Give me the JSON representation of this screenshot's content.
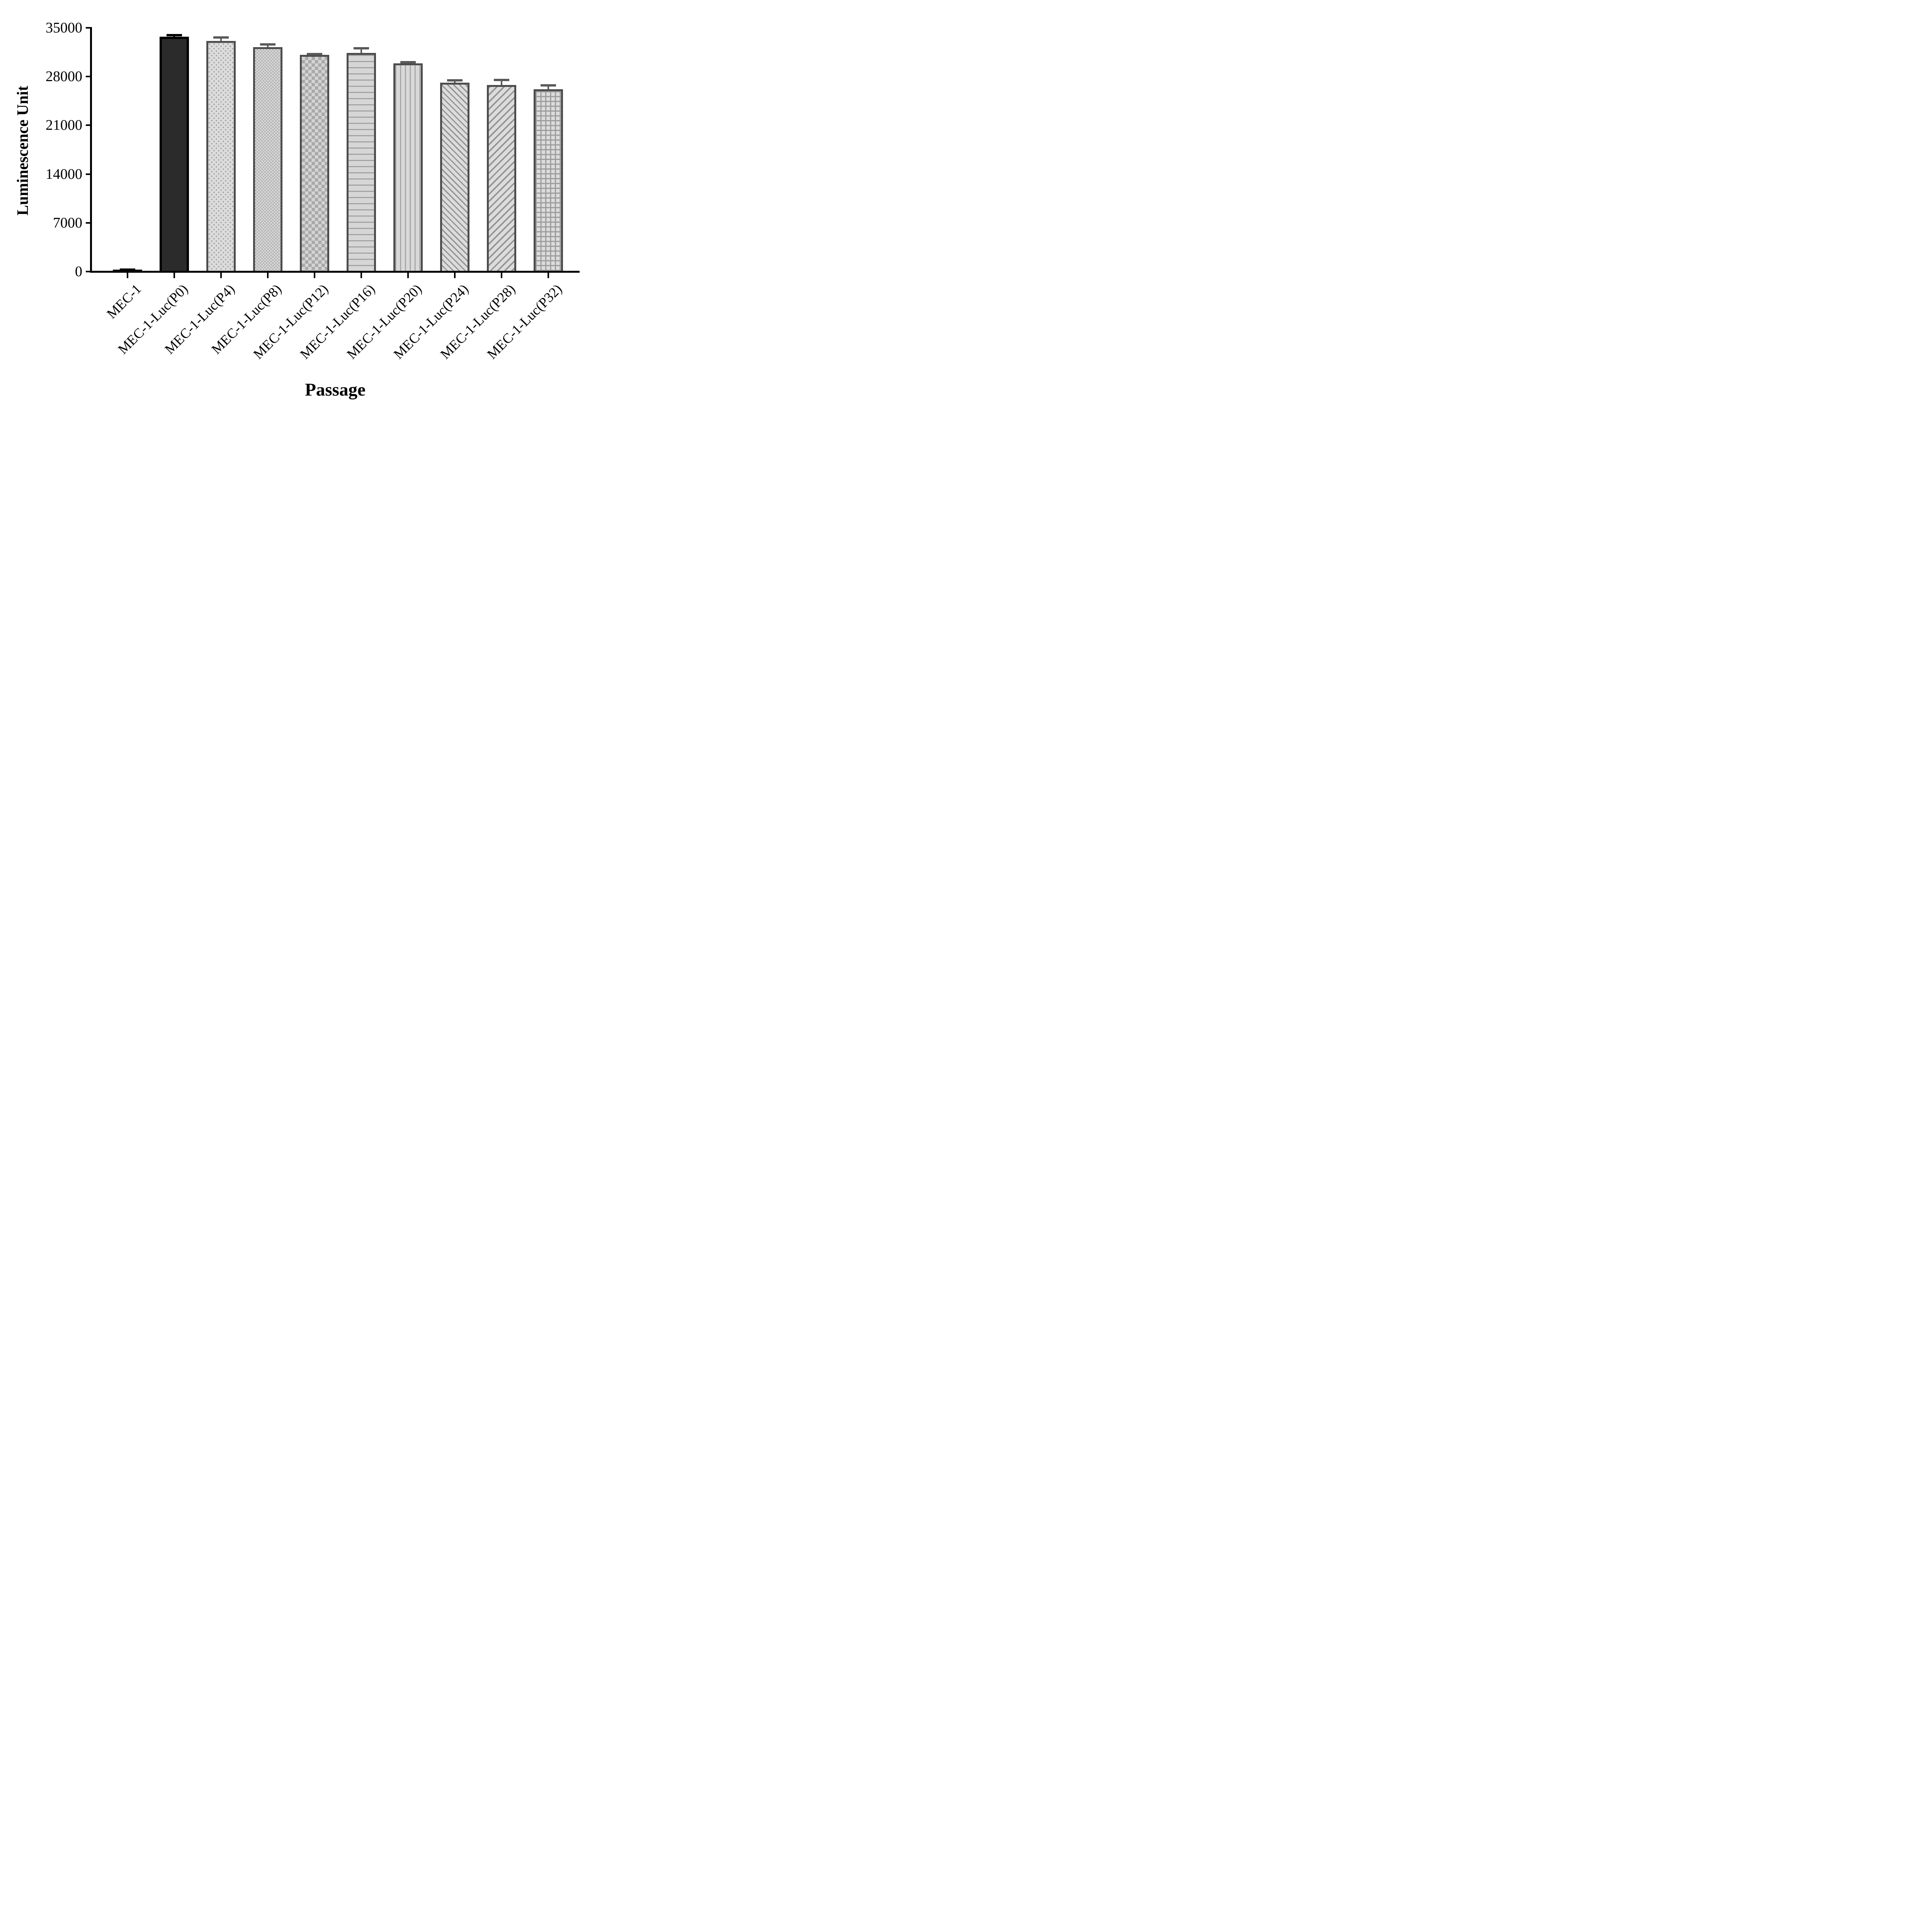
{
  "figure": {
    "background": "#ffffff"
  },
  "colors": {
    "axis": "#000000",
    "bar_border_gray": "#4d4d4d",
    "error_bar_gray": "#595959",
    "solid_bar_fill": "#2b2b2b",
    "pattern_background": "#dcdcdc",
    "pattern_foreground": "#9b9b9b"
  },
  "chart_data": {
    "type": "bar",
    "title": "",
    "xlabel": "Passage",
    "ylabel": "Luminescence Unit",
    "ylim": [
      0,
      35000
    ],
    "yticks": [
      0,
      7000,
      14000,
      21000,
      28000,
      35000
    ],
    "grid": false,
    "legend": false,
    "categories": [
      "MEC-1",
      "MEC-1-Luc(P0)",
      "MEC-1-Luc(P4)",
      "MEC-1-Luc(P8)",
      "MEC-1-Luc(P12)",
      "MEC-1-Luc(P16)",
      "MEC-1-Luc(P20)",
      "MEC-1-Luc(P24)",
      "MEC-1-Luc(P28)",
      "MEC-1-Luc(P32)"
    ],
    "values": [
      300,
      33700,
      33100,
      32200,
      31100,
      31400,
      29900,
      27100,
      26800,
      26200
    ],
    "errors": [
      150,
      400,
      700,
      600,
      300,
      850,
      350,
      550,
      900,
      700
    ],
    "bar_styles": [
      {
        "pattern": "solid-black",
        "border": "#000000",
        "border_w": 2,
        "error_color": "#000000"
      },
      {
        "pattern": "solid-dark",
        "border": "#000000",
        "border_w": 6,
        "error_color": "#000000"
      },
      {
        "pattern": "dots",
        "border": "#4d4d4d",
        "border_w": 5,
        "error_color": "#595959"
      },
      {
        "pattern": "checker-sm",
        "border": "#4d4d4d",
        "border_w": 5,
        "error_color": "#595959"
      },
      {
        "pattern": "checker-lg",
        "border": "#4d4d4d",
        "border_w": 5,
        "error_color": "#595959"
      },
      {
        "pattern": "hlines",
        "border": "#4d4d4d",
        "border_w": 5,
        "error_color": "#595959"
      },
      {
        "pattern": "vlines",
        "border": "#4d4d4d",
        "border_w": 5,
        "error_color": "#595959"
      },
      {
        "pattern": "diag-up",
        "border": "#4d4d4d",
        "border_w": 5,
        "error_color": "#595959"
      },
      {
        "pattern": "diag-down",
        "border": "#4d4d4d",
        "border_w": 5,
        "error_color": "#595959"
      },
      {
        "pattern": "grid",
        "border": "#4d4d4d",
        "border_w": 5,
        "error_color": "#595959"
      }
    ]
  }
}
